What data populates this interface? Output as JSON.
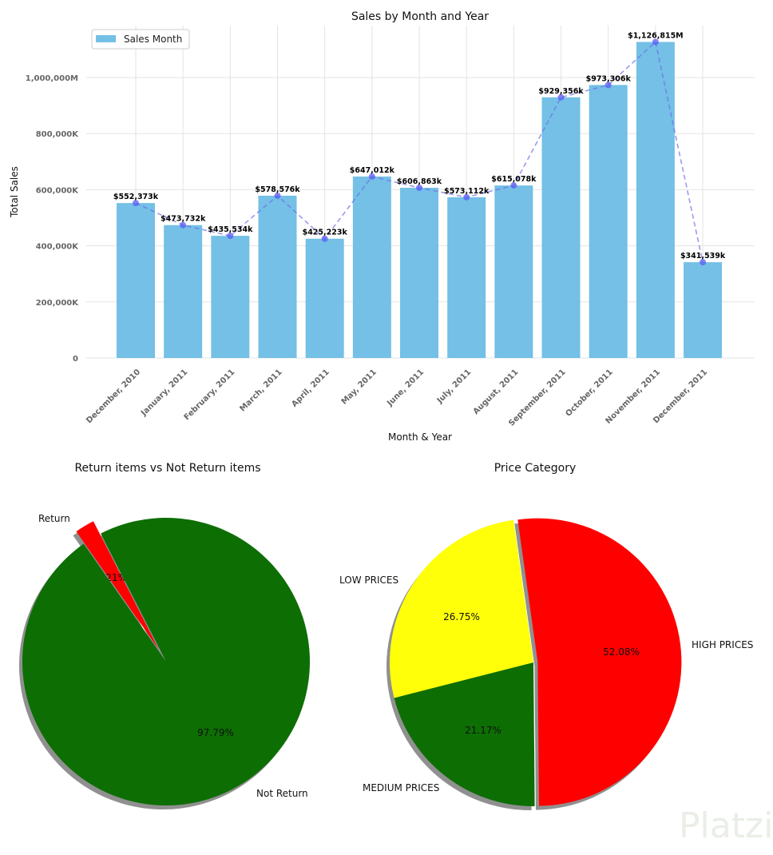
{
  "chart_data": [
    {
      "type": "bar",
      "title": "Sales by Month and Year",
      "xlabel": "Month & Year",
      "ylabel": "Total Sales",
      "legend": {
        "label": "Sales Month",
        "placement": "top-left"
      },
      "grid": true,
      "ylim": [
        0,
        1190000
      ],
      "yticks": [
        0,
        200000,
        400000,
        600000,
        800000,
        1000000
      ],
      "ytick_labels": [
        "0",
        "200,000K",
        "400,000K",
        "600,000K",
        "800,000K",
        "1,000,000M"
      ],
      "categories": [
        "December, 2010",
        "January, 2011",
        "February, 2011",
        "March, 2011",
        "April, 2011",
        "May, 2011",
        "June, 2011",
        "July, 2011",
        "August, 2011",
        "September, 2011",
        "October, 2011",
        "November, 2011",
        "December, 2011"
      ],
      "values": [
        552373,
        473732,
        435534,
        578576,
        425223,
        647012,
        606863,
        573112,
        615078,
        929356,
        973306,
        1126815,
        341539
      ],
      "data_labels": [
        "$552,373k",
        "$473,732k",
        "$435,534k",
        "$578,576k",
        "$425,223k",
        "$647,012k",
        "$606,863k",
        "$573,112k",
        "$615,078k",
        "$929,356k",
        "$973,306k",
        "$1,126,815M",
        "$341,539k"
      ],
      "overlay_line": {
        "style": "dashed",
        "markers": true
      },
      "colors": {
        "bar": "#74c0e6",
        "line": "#6f6fe8",
        "marker": "#5b5bf5",
        "grid": "#e3e3e3"
      }
    },
    {
      "type": "pie",
      "title": "Return items vs Not Return items",
      "slices": [
        {
          "label": "Return",
          "value": 2.21,
          "pct_label": "2.21%",
          "color": "#ff0000",
          "exploded": true
        },
        {
          "label": "Not Return",
          "value": 97.79,
          "pct_label": "97.79%",
          "color": "#0d6e04",
          "exploded": false
        }
      ],
      "shadow": true
    },
    {
      "type": "pie",
      "title": "Price Category",
      "slices": [
        {
          "label": "HIGH PRICES",
          "value": 52.08,
          "pct_label": "52.08%",
          "color": "#ff0000",
          "exploded": true
        },
        {
          "label": "MEDIUM PRICES",
          "value": 21.17,
          "pct_label": "21.17%",
          "color": "#0d6e04",
          "exploded": false
        },
        {
          "label": "LOW PRICES",
          "value": 26.75,
          "pct_label": "26.75%",
          "color": "#ffff0a",
          "exploded": false
        }
      ],
      "shadow": true
    }
  ],
  "watermark": "Platzi"
}
